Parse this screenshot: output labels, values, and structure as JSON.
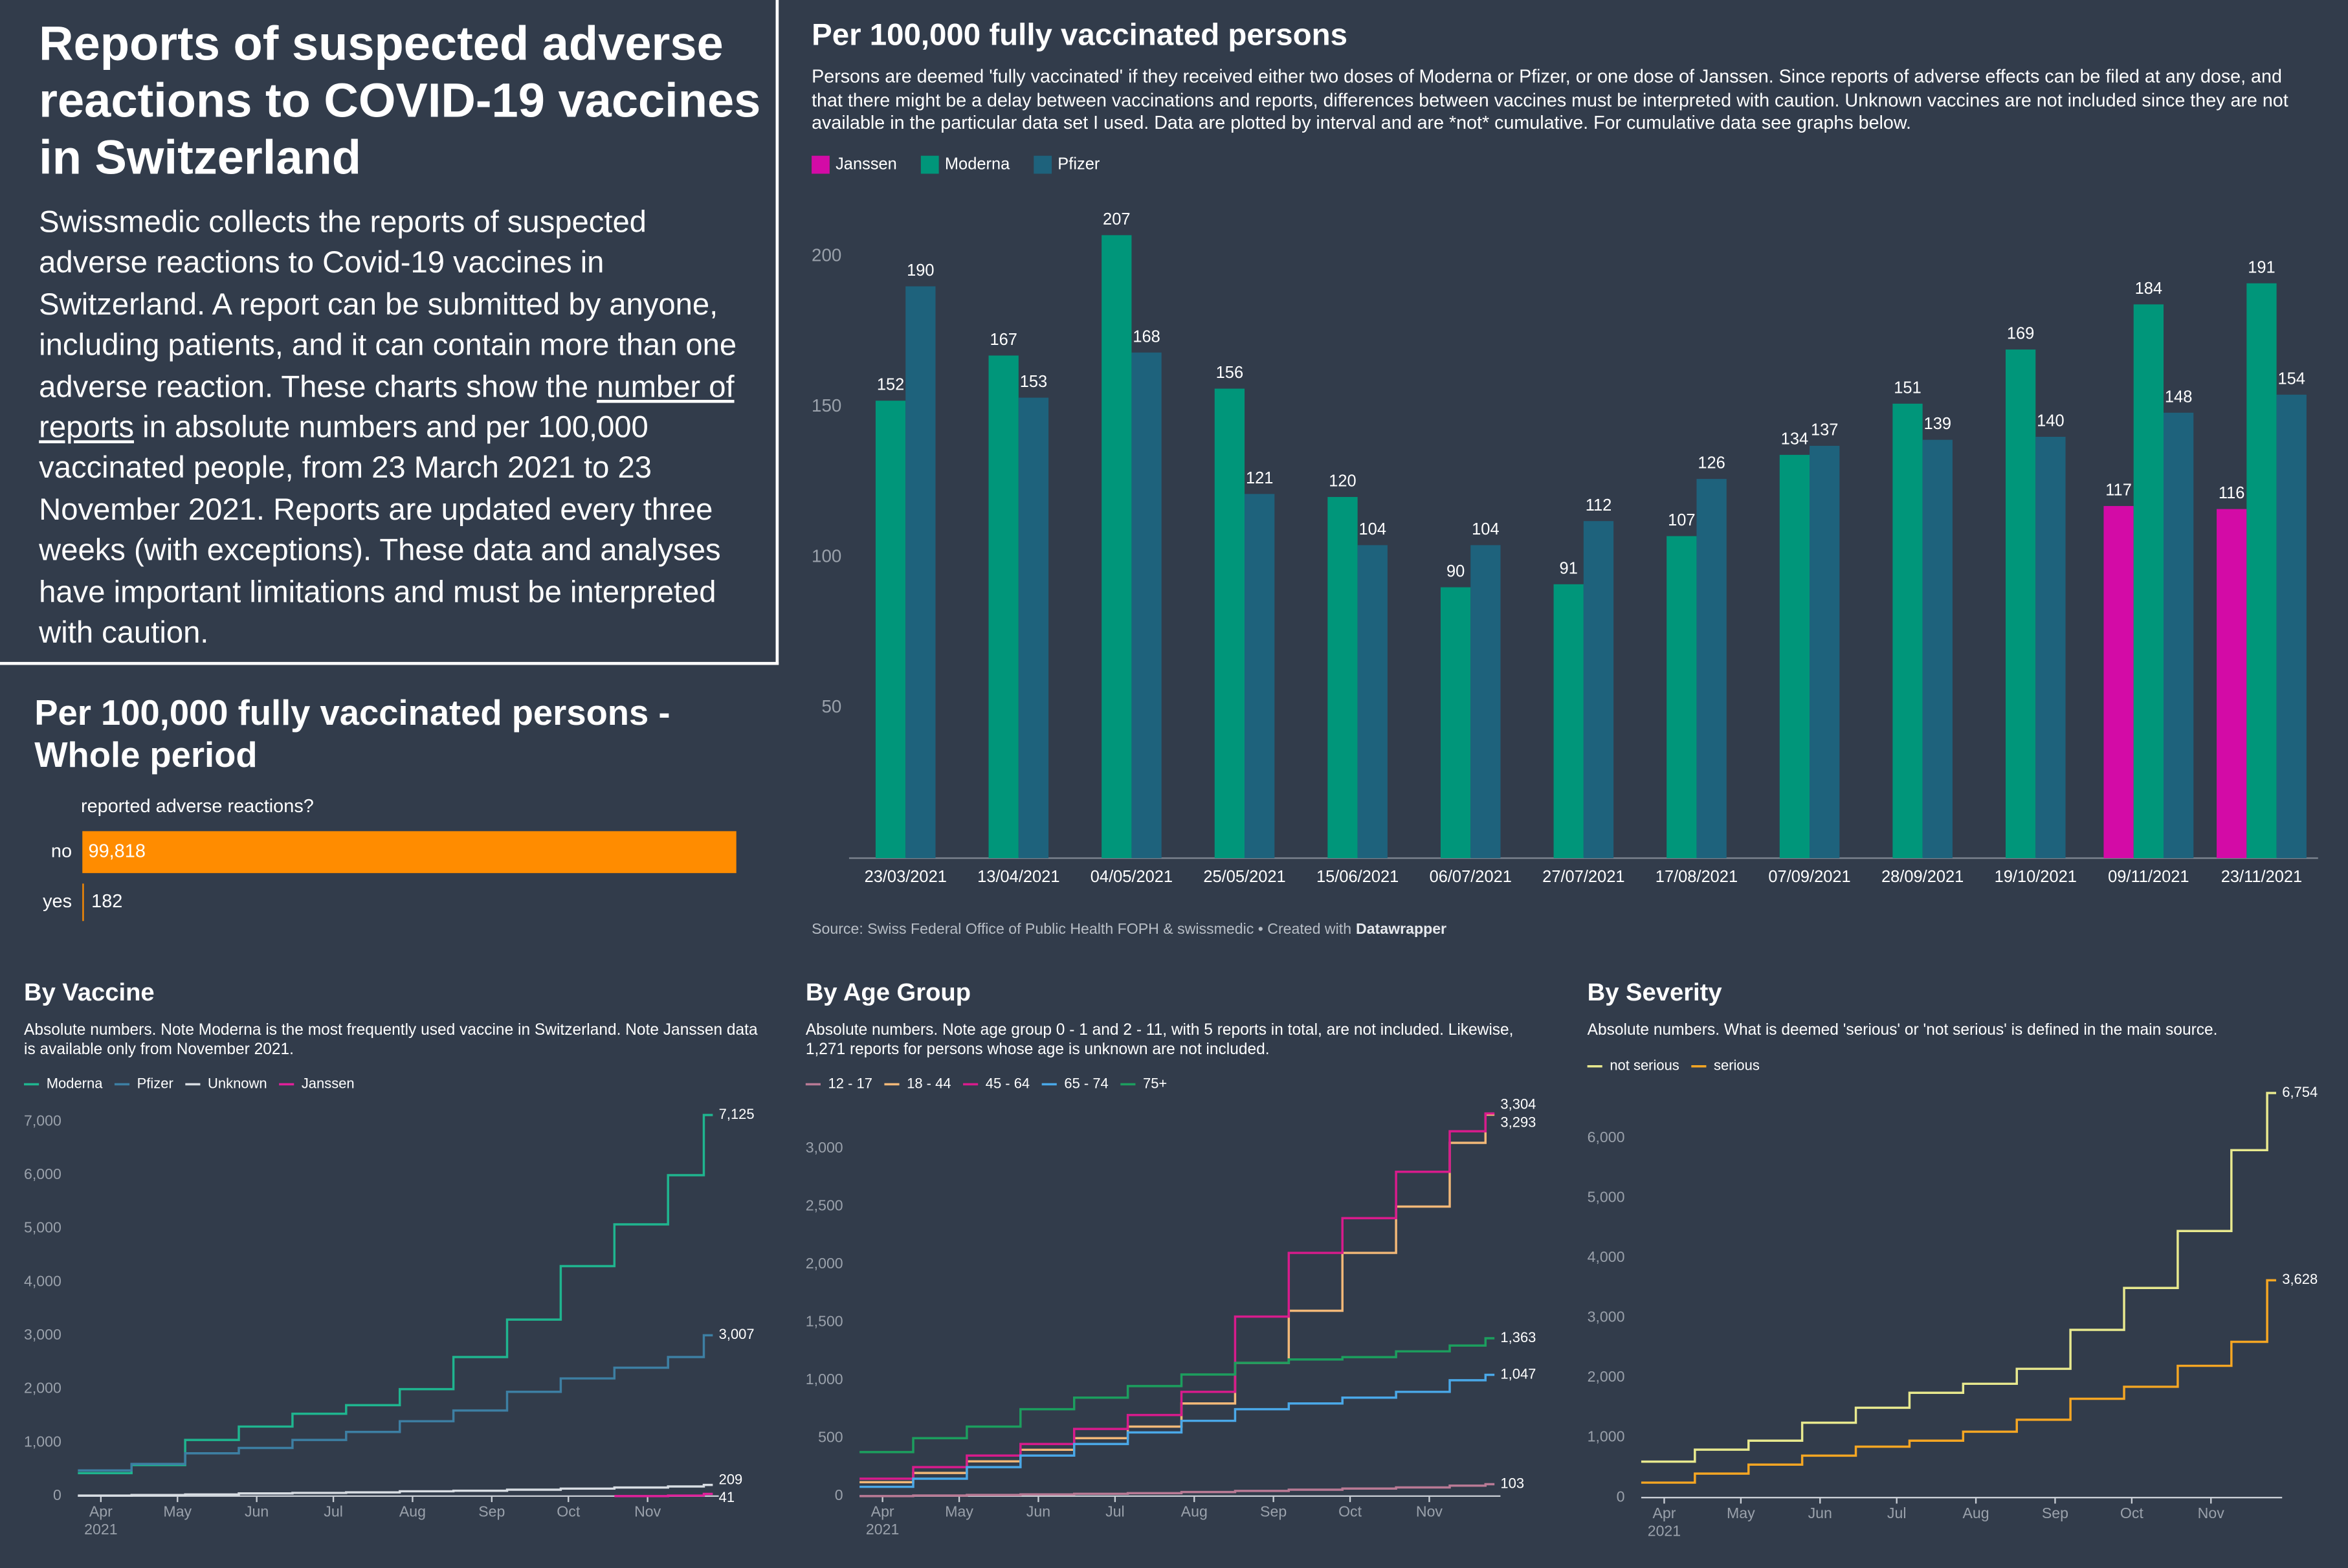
{
  "header": {
    "title": "Reports of suspected adverse reactions to COVID-19 vaccines in Switzerland",
    "intro_before": "Swissmedic collects the reports of suspected adverse reactions to Covid-19 vaccines in Switzerland. A report can be submitted by anyone, including patients, and it can contain more than one adverse reaction. These charts show the",
    "intro_link": "number of reports",
    "intro_after": "in absolute numbers and per 100,000 vaccinated people, from 23 March 2021 to 23 November 2021. Reports are updated every three weeks (with exceptions). These data and analyses have important limitations and must be interpreted with caution."
  },
  "chart_data": [
    {
      "type": "bar",
      "title": "Per 100,000 fully vaccinated persons",
      "subtitle": "Persons are deemed 'fully vaccinated' if they received either two doses of Moderna or Pfizer, or one dose of Janssen. Since reports of adverse effects can be filed at any dose, and that there might be a delay between vaccinations and reports, differences between vaccines must be interpreted with caution. Unknown vaccines are not included since they are not available in the particular data set I used. Data are plotted by interval and are *not* cumulative. For cumulative data see graphs below.",
      "categories": [
        "23/03/2021",
        "13/04/2021",
        "04/05/2021",
        "25/05/2021",
        "15/06/2021",
        "06/07/2021",
        "27/07/2021",
        "17/08/2021",
        "07/09/2021",
        "28/09/2021",
        "19/10/2021",
        "09/11/2021",
        "23/11/2021"
      ],
      "series": [
        {
          "name": "Janssen",
          "color": "#d30ba6",
          "values": [
            null,
            null,
            null,
            null,
            null,
            null,
            null,
            null,
            null,
            null,
            null,
            117,
            116
          ]
        },
        {
          "name": "Moderna",
          "color": "#00967a",
          "values": [
            152,
            167,
            207,
            156,
            120,
            90,
            91,
            107,
            134,
            151,
            169,
            184,
            191
          ]
        },
        {
          "name": "Pfizer",
          "color": "#1e627c",
          "values": [
            190,
            153,
            168,
            121,
            104,
            104,
            112,
            126,
            137,
            139,
            140,
            148,
            154
          ]
        }
      ],
      "ylim": [
        0,
        210
      ],
      "yticks": [
        50,
        100,
        150,
        200
      ],
      "grid": false,
      "legend": "top-left"
    },
    {
      "type": "bar",
      "orientation": "horizontal",
      "title": "Per 100,000 fully vaccinated persons - Whole period",
      "axis_label": "reported adverse reactions?",
      "categories": [
        "no",
        "yes"
      ],
      "values": [
        99818,
        182
      ],
      "value_labels": [
        "99,818",
        "182"
      ],
      "color": "#ff8c00",
      "xlim": [
        0,
        100000
      ]
    },
    {
      "type": "line",
      "interpolation": "step-after",
      "title": "By Vaccine",
      "subtitle": "Absolute numbers. Note Moderna is the most frequently used vaccine in Switzerland. Note Janssen data is available only from November 2021.",
      "x": [
        "23/03/2021",
        "13/04/2021",
        "04/05/2021",
        "25/05/2021",
        "15/06/2021",
        "06/07/2021",
        "27/07/2021",
        "17/08/2021",
        "07/09/2021",
        "28/09/2021",
        "19/10/2021",
        "09/11/2021",
        "23/11/2021"
      ],
      "series": [
        {
          "name": "Moderna",
          "color": "#1fb58f",
          "values": [
            430,
            580,
            1050,
            1300,
            1540,
            1700,
            2000,
            2600,
            3300,
            4300,
            5080,
            6000,
            7125
          ],
          "value_labels": [
            null,
            null,
            null,
            null,
            null,
            null,
            null,
            null,
            null,
            null,
            null,
            null,
            "7,125"
          ]
        },
        {
          "name": "Pfizer",
          "color": "#3d7fa3",
          "values": [
            480,
            600,
            800,
            900,
            1050,
            1200,
            1400,
            1600,
            1950,
            2200,
            2400,
            2600,
            3007
          ],
          "value_labels": [
            null,
            null,
            null,
            null,
            null,
            null,
            null,
            null,
            null,
            null,
            null,
            null,
            "3,007"
          ]
        },
        {
          "name": "Unknown",
          "color": "#d8dde3",
          "values": [
            10,
            20,
            30,
            50,
            60,
            70,
            90,
            100,
            120,
            140,
            160,
            180,
            209
          ],
          "value_labels": [
            null,
            null,
            null,
            null,
            null,
            null,
            null,
            null,
            null,
            null,
            null,
            null,
            "209"
          ]
        },
        {
          "name": "Janssen",
          "color": "#e0209a",
          "values": [
            null,
            null,
            null,
            null,
            null,
            null,
            null,
            null,
            null,
            null,
            0,
            10,
            41
          ],
          "value_labels": [
            null,
            null,
            null,
            null,
            null,
            null,
            null,
            null,
            null,
            null,
            null,
            null,
            "41"
          ]
        }
      ],
      "xlim": [
        "23/03/2021",
        "23/11/2021"
      ],
      "xticks": [
        {
          "value": "01/04/2021",
          "label": "Apr"
        },
        {
          "value": "01/05/2021",
          "label": "May"
        },
        {
          "value": "01/06/2021",
          "label": "Jun"
        },
        {
          "value": "01/07/2021",
          "label": "Jul"
        },
        {
          "value": "01/08/2021",
          "label": "Aug"
        },
        {
          "value": "01/09/2021",
          "label": "Sep"
        },
        {
          "value": "01/10/2021",
          "label": "Oct"
        },
        {
          "value": "01/11/2021",
          "label": "Nov"
        }
      ],
      "x_year_label": "2021",
      "ylim": [
        0,
        7000
      ],
      "yticks": [
        0,
        {
          "value": 1000,
          "label": "1,000"
        },
        {
          "value": 2000,
          "label": "2,000"
        },
        {
          "value": 3000,
          "label": "3,000"
        },
        {
          "value": 4000,
          "label": "4,000"
        },
        {
          "value": 5000,
          "label": "5,000"
        },
        {
          "value": 6000,
          "label": "6,000"
        },
        {
          "value": 7000,
          "label": "7,000"
        }
      ]
    },
    {
      "type": "line",
      "interpolation": "step-after",
      "title": "By Age Group",
      "subtitle": "Absolute numbers. Note age group 0 - 1 and 2 - 11, with 5 reports in total, are not included. Likewise, 1,271 reports for persons whose age is unknown are not included.",
      "x": [
        "23/03/2021",
        "13/04/2021",
        "04/05/2021",
        "25/05/2021",
        "15/06/2021",
        "06/07/2021",
        "27/07/2021",
        "17/08/2021",
        "07/09/2021",
        "28/09/2021",
        "19/10/2021",
        "09/11/2021",
        "23/11/2021"
      ],
      "series": [
        {
          "name": "12 - 17",
          "color": "#b97a95",
          "values": [
            0,
            5,
            10,
            15,
            20,
            25,
            35,
            45,
            55,
            65,
            75,
            90,
            103
          ],
          "value_labels": [
            null,
            null,
            null,
            null,
            null,
            null,
            null,
            null,
            null,
            null,
            null,
            null,
            "103"
          ]
        },
        {
          "name": "18 - 44",
          "color": "#f2b878",
          "values": [
            120,
            200,
            300,
            400,
            500,
            600,
            800,
            1150,
            1600,
            2100,
            2500,
            3050,
            3293
          ],
          "value_labels": [
            null,
            null,
            null,
            null,
            null,
            null,
            null,
            null,
            null,
            null,
            null,
            null,
            "3,293"
          ]
        },
        {
          "name": "45 - 64",
          "color": "#d81b8c",
          "values": [
            150,
            250,
            350,
            450,
            580,
            700,
            900,
            1550,
            2100,
            2400,
            2800,
            3150,
            3304
          ],
          "value_labels": [
            null,
            null,
            null,
            null,
            null,
            null,
            null,
            null,
            null,
            null,
            null,
            null,
            "3,304"
          ]
        },
        {
          "name": "65 - 74",
          "color": "#4aa8e8",
          "values": [
            80,
            150,
            250,
            350,
            450,
            550,
            650,
            750,
            800,
            850,
            900,
            1000,
            1047
          ],
          "value_labels": [
            null,
            null,
            null,
            null,
            null,
            null,
            null,
            null,
            null,
            null,
            null,
            null,
            "1,047"
          ]
        },
        {
          "name": "75+",
          "color": "#1c9e5e",
          "values": [
            380,
            500,
            600,
            750,
            850,
            950,
            1050,
            1150,
            1180,
            1200,
            1250,
            1300,
            1363
          ],
          "value_labels": [
            null,
            null,
            null,
            null,
            null,
            null,
            null,
            null,
            null,
            null,
            null,
            null,
            "1,363"
          ]
        }
      ],
      "xlim": [
        "23/03/2021",
        "23/11/2021"
      ],
      "xticks": [
        {
          "value": "01/04/2021",
          "label": "Apr"
        },
        {
          "value": "01/05/2021",
          "label": "May"
        },
        {
          "value": "01/06/2021",
          "label": "Jun"
        },
        {
          "value": "01/07/2021",
          "label": "Jul"
        },
        {
          "value": "01/08/2021",
          "label": "Aug"
        },
        {
          "value": "01/09/2021",
          "label": "Sep"
        },
        {
          "value": "01/10/2021",
          "label": "Oct"
        },
        {
          "value": "01/11/2021",
          "label": "Nov"
        }
      ],
      "x_year_label": "2021",
      "ylim": [
        0,
        3000
      ],
      "yticks": [
        0,
        500,
        {
          "value": 1000,
          "label": "1,000"
        },
        {
          "value": 1500,
          "label": "1,500"
        },
        {
          "value": 2000,
          "label": "2,000"
        },
        {
          "value": 2500,
          "label": "2,500"
        },
        {
          "value": 3000,
          "label": "3,000"
        }
      ]
    },
    {
      "type": "line",
      "interpolation": "step-after",
      "title": "By Severity",
      "subtitle": "Absolute numbers. What is deemed 'serious' or 'not serious' is defined in the main source.",
      "x": [
        "23/03/2021",
        "13/04/2021",
        "04/05/2021",
        "25/05/2021",
        "15/06/2021",
        "06/07/2021",
        "27/07/2021",
        "17/08/2021",
        "07/09/2021",
        "28/09/2021",
        "19/10/2021",
        "09/11/2021",
        "23/11/2021"
      ],
      "series": [
        {
          "name": "not serious",
          "color": "#e8e98e",
          "values": [
            600,
            800,
            950,
            1250,
            1500,
            1750,
            1900,
            2150,
            2800,
            3500,
            4450,
            5800,
            6754
          ],
          "value_labels": [
            null,
            null,
            null,
            null,
            null,
            null,
            null,
            null,
            null,
            null,
            null,
            null,
            "6,754"
          ]
        },
        {
          "name": "serious",
          "color": "#f5a623",
          "values": [
            250,
            400,
            550,
            700,
            850,
            950,
            1100,
            1300,
            1650,
            1850,
            2200,
            2600,
            3628
          ],
          "value_labels": [
            null,
            null,
            null,
            null,
            null,
            null,
            null,
            null,
            null,
            null,
            null,
            null,
            "3,628"
          ]
        }
      ],
      "xlim": [
        "23/03/2021",
        "23/11/2021"
      ],
      "xticks": [
        {
          "value": "01/04/2021",
          "label": "Apr"
        },
        {
          "value": "01/05/2021",
          "label": "May"
        },
        {
          "value": "01/06/2021",
          "label": "Jun"
        },
        {
          "value": "01/07/2021",
          "label": "Jul"
        },
        {
          "value": "01/08/2021",
          "label": "Aug"
        },
        {
          "value": "01/09/2021",
          "label": "Sep"
        },
        {
          "value": "01/10/2021",
          "label": "Oct"
        },
        {
          "value": "01/11/2021",
          "label": "Nov"
        }
      ],
      "x_year_label": "2021",
      "ylim": [
        0,
        6000
      ],
      "yticks": [
        0,
        {
          "value": 1000,
          "label": "1,000"
        },
        {
          "value": 2000,
          "label": "2,000"
        },
        {
          "value": 3000,
          "label": "3,000"
        },
        {
          "value": 4000,
          "label": "4,000"
        },
        {
          "value": 5000,
          "label": "5,000"
        },
        {
          "value": 6000,
          "label": "6,000"
        }
      ]
    }
  ],
  "source": {
    "text": "Source: Swiss Federal Office of Public Health FOPH & swissmedic • Created with",
    "brand": "Datawrapper"
  }
}
